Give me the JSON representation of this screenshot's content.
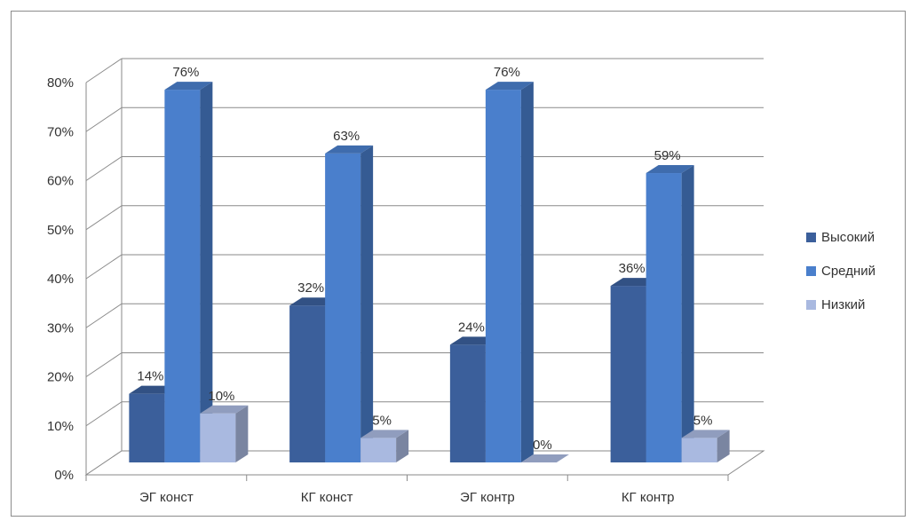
{
  "chart_data": {
    "type": "bar",
    "categories": [
      "ЭГ конст",
      "КГ конст",
      "ЭГ контр",
      "КГ контр"
    ],
    "series": [
      {
        "name": "Высокий",
        "values": [
          14,
          32,
          24,
          36
        ],
        "labels": [
          "14%",
          "32%",
          "24%",
          "36%"
        ],
        "color": "#3b5f9b"
      },
      {
        "name": "Средний",
        "values": [
          76,
          63,
          76,
          59
        ],
        "labels": [
          "76%",
          "63%",
          "76%",
          "59%"
        ],
        "color": "#4a7fcc"
      },
      {
        "name": "Низкий",
        "values": [
          10,
          5,
          0,
          5
        ],
        "labels": [
          "10%",
          "5%",
          "0%",
          "5%"
        ],
        "color": "#a9b9e0"
      }
    ],
    "ylim": [
      0,
      80
    ],
    "yticks": [
      "0%",
      "10%",
      "20%",
      "30%",
      "40%",
      "50%",
      "60%",
      "70%",
      "80%"
    ],
    "grid": true,
    "legend_position": "right",
    "style": "3d-column"
  }
}
